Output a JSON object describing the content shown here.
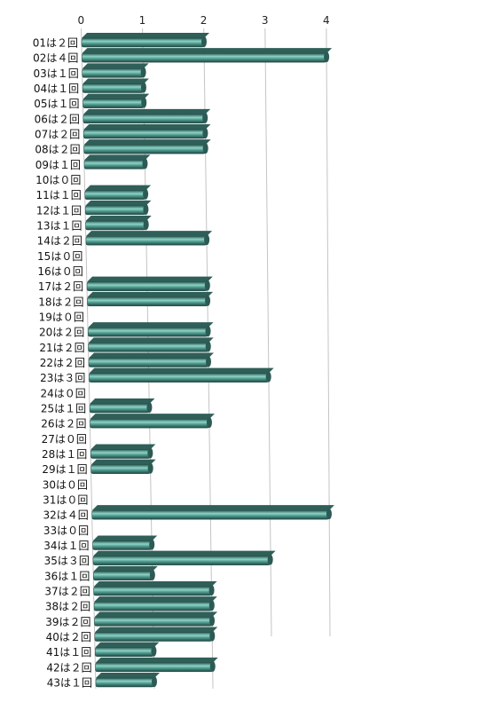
{
  "chart_data": {
    "type": "bar",
    "orientation": "horizontal",
    "style": "3d perspective cylinders",
    "title": "",
    "xlabel": "",
    "ylabel": "",
    "xlim": [
      0,
      4
    ],
    "x_ticks": [
      "0",
      "1",
      "2",
      "3",
      "4"
    ],
    "grid": true,
    "bar_color": "#2f6b63",
    "bar_highlight": "#8fd3c6",
    "categories": [
      "01は２回",
      "02は４回",
      "03は１回",
      "04は１回",
      "05は１回",
      "06は２回",
      "07は２回",
      "08は２回",
      "09は１回",
      "10は０回",
      "11は１回",
      "12は１回",
      "13は１回",
      "14は２回",
      "15は０回",
      "16は０回",
      "17は２回",
      "18は２回",
      "19は０回",
      "20は２回",
      "21は２回",
      "22は２回",
      "23は３回",
      "24は０回",
      "25は１回",
      "26は２回",
      "27は０回",
      "28は１回",
      "29は１回",
      "30は０回",
      "31は０回",
      "32は４回",
      "33は０回",
      "34は１回",
      "35は３回",
      "36は１回",
      "37は２回",
      "38は２回",
      "39は２回",
      "40は２回",
      "41は１回",
      "42は２回",
      "43は１回"
    ],
    "values": [
      2,
      4,
      1,
      1,
      1,
      2,
      2,
      2,
      1,
      0,
      1,
      1,
      1,
      2,
      0,
      0,
      2,
      2,
      0,
      2,
      2,
      2,
      3,
      0,
      1,
      2,
      0,
      1,
      1,
      0,
      0,
      4,
      0,
      1,
      3,
      1,
      2,
      2,
      2,
      2,
      1,
      2,
      1
    ]
  }
}
